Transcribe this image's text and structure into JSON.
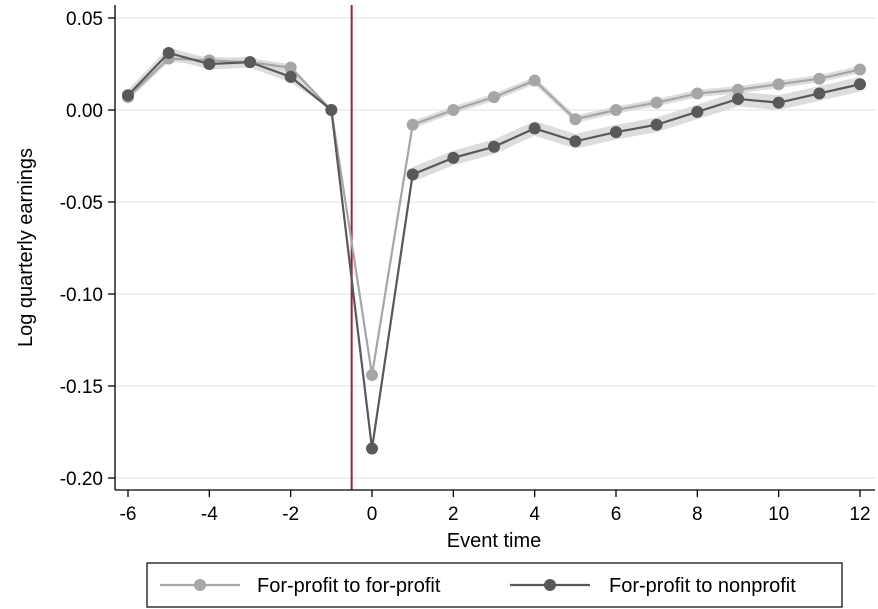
{
  "chart_data": {
    "type": "line",
    "title": "",
    "xlabel": "Event time",
    "ylabel": "Log quarterly earnings",
    "x": [
      -6,
      -5,
      -4,
      -3,
      -2,
      -1,
      0,
      1,
      2,
      3,
      4,
      5,
      6,
      7,
      8,
      9,
      10,
      11,
      12
    ],
    "xlim": [
      -6,
      12
    ],
    "ylim": [
      -0.2,
      0.05
    ],
    "xticks": [
      "-6",
      "-4",
      "-2",
      "0",
      "2",
      "4",
      "6",
      "8",
      "10",
      "12"
    ],
    "yticks": [
      "0.05",
      "0.00",
      "-0.05",
      "-0.10",
      "-0.15",
      "-0.20"
    ],
    "event_line_x": -0.5,
    "grid": true,
    "legend_position": "bottom",
    "series": [
      {
        "name": "For-profit to for-profit",
        "color": "#a6a6a6",
        "values": [
          0.007,
          0.028,
          0.027,
          0.026,
          0.023,
          0.0,
          -0.144,
          -0.008,
          0.0,
          0.007,
          0.016,
          -0.005,
          0.0,
          0.004,
          0.009,
          0.011,
          0.014,
          0.017,
          0.022
        ],
        "band_halfwidth": [
          0.002,
          0.002,
          0.002,
          0.002,
          0.002,
          0.0,
          0.003,
          0.002,
          0.002,
          0.002,
          0.002,
          0.002,
          0.002,
          0.002,
          0.002,
          0.002,
          0.002,
          0.002,
          0.002
        ]
      },
      {
        "name": "For-profit to nonprofit",
        "color": "#595959",
        "values": [
          0.008,
          0.031,
          0.025,
          0.026,
          0.018,
          0.0,
          -0.184,
          -0.035,
          -0.026,
          -0.02,
          -0.01,
          -0.017,
          -0.012,
          -0.008,
          -0.001,
          0.006,
          0.004,
          0.009,
          0.014
        ],
        "band_halfwidth": [
          0.003,
          0.003,
          0.003,
          0.003,
          0.003,
          0.0,
          0.004,
          0.004,
          0.004,
          0.004,
          0.004,
          0.004,
          0.004,
          0.004,
          0.004,
          0.004,
          0.004,
          0.004,
          0.004
        ]
      }
    ]
  },
  "colors": {
    "event_line": "#9b2335",
    "grid": "#e4e8ec",
    "band": "#d9d9d9",
    "axis": "#000000"
  }
}
